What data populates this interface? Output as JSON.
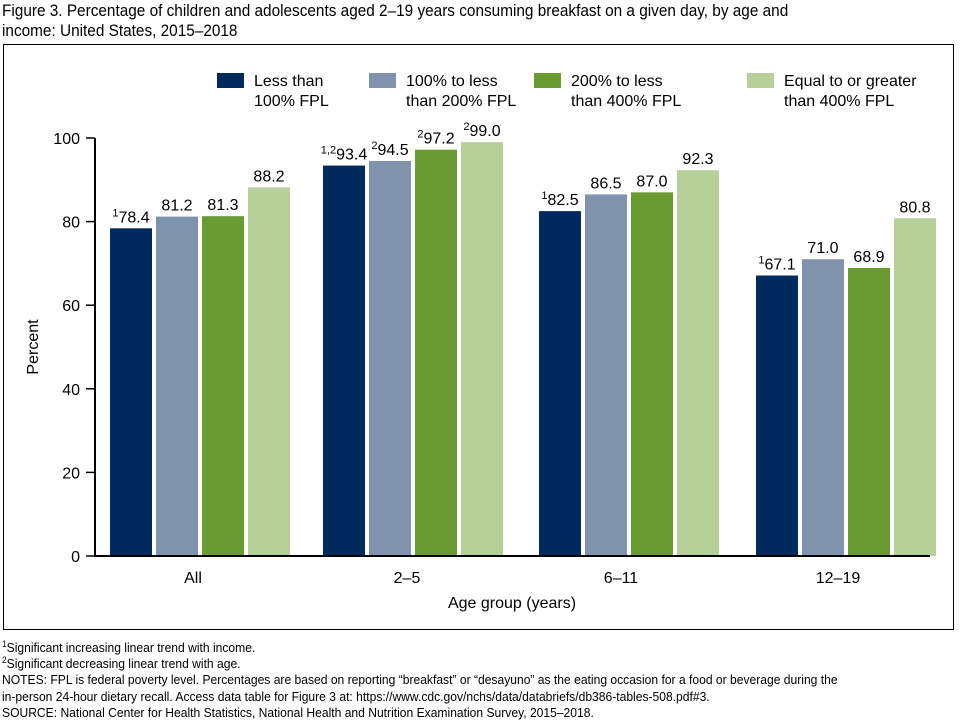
{
  "figure_title_line1": "Figure 3. Percentage of children and adolescents aged 2–19 years consuming breakfast on a given day, by age and",
  "figure_title_line2": "income: United States, 2015–2018",
  "chart_data": {
    "type": "bar",
    "title": "Percentage of children and adolescents aged 2–19 years consuming breakfast on a given day, by age and income: United States, 2015–2018",
    "xlabel": "Age group (years)",
    "ylabel": "Percent",
    "ylim": [
      0,
      100
    ],
    "yticks": [
      0,
      20,
      40,
      60,
      80,
      100
    ],
    "grid": false,
    "legend_position": "top",
    "categories": [
      "All",
      "2–5",
      "6–11",
      "12–19"
    ],
    "series": [
      {
        "name": "Less than 100% FPL",
        "legend_line1": "Less than",
        "legend_line2": "100% FPL",
        "color": "#002A5C",
        "values": [
          78.4,
          93.4,
          82.5,
          67.1
        ],
        "labels": [
          "78.4",
          "93.4",
          "82.5",
          "67.1"
        ],
        "superscripts": [
          "1",
          "1,2",
          "1",
          "1"
        ]
      },
      {
        "name": "100% to less than 200% FPL",
        "legend_line1": "100% to less",
        "legend_line2": "than 200% FPL",
        "color": "#8093AE",
        "values": [
          81.2,
          94.5,
          86.5,
          71.0
        ],
        "labels": [
          "81.2",
          "94.5",
          "86.5",
          "71.0"
        ],
        "superscripts": [
          "",
          "2",
          "",
          ""
        ]
      },
      {
        "name": "200% to less than 400% FPL",
        "legend_line1": "200% to less",
        "legend_line2": "than 400% FPL",
        "color": "#6A9A32",
        "values": [
          81.3,
          97.2,
          87.0,
          68.9
        ],
        "labels": [
          "81.3",
          "97.2",
          "87.0",
          "68.9"
        ],
        "superscripts": [
          "",
          "2",
          "",
          ""
        ]
      },
      {
        "name": "Equal to or greater than 400% FPL",
        "legend_line1": "Equal to or greater",
        "legend_line2": "than 400% FPL",
        "color": "#B6CF9B",
        "values": [
          88.2,
          99.0,
          92.3,
          80.8
        ],
        "labels": [
          "88.2",
          "99.0",
          "92.3",
          "80.8"
        ],
        "superscripts": [
          "",
          "2",
          "",
          ""
        ]
      }
    ]
  },
  "footnotes": {
    "note1_sup": "1",
    "note1_text": "Significant increasing linear trend with income.",
    "note2_sup": "2",
    "note2_text": "Significant decreasing linear trend with age.",
    "notes_line1": "NOTES: FPL is federal poverty level. Percentages are based on reporting “breakfast” or “desayuno” as the eating occasion for a food or beverage during the",
    "notes_line2": "in-person 24-hour dietary recall. Access data table for Figure 3 at: https://www.cdc.gov/nchs/data/databriefs/db386-tables-508.pdf#3.",
    "source": "SOURCE: National Center for Health Statistics, National Health and Nutrition Examination Survey, 2015–2018."
  }
}
